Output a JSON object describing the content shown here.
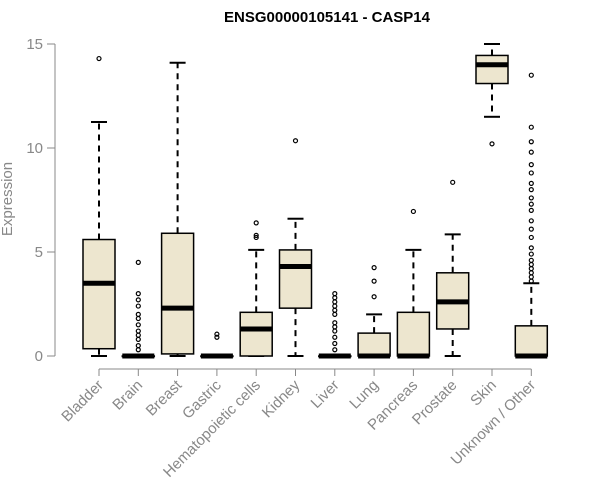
{
  "chart_data": {
    "type": "box",
    "title": "ENSG00000105141 - CASP14",
    "xlabel": "",
    "ylabel": "Expression",
    "ylim": [
      0,
      15
    ],
    "yticks": [
      0,
      5,
      10,
      15
    ],
    "grid": false,
    "colors": {
      "box_fill": "#ede6cf",
      "stroke": "#000000",
      "axis": "#888888"
    },
    "categories": [
      "Bladder",
      "Brain",
      "Breast",
      "Gastric",
      "Hematopoietic cells",
      "Kidney",
      "Liver",
      "Lung",
      "Pancreas",
      "Prostate",
      "Skin",
      "Unknown / Other"
    ],
    "boxes": [
      {
        "min": 0,
        "q1": 0.35,
        "median": 3.5,
        "q3": 5.6,
        "max": 11.25,
        "outliers": [
          14.3
        ]
      },
      {
        "min": 0,
        "q1": 0,
        "median": 0,
        "q3": 0,
        "max": 0,
        "outliers": [
          4.5,
          3.0,
          2.7,
          2.4,
          2.0,
          1.8,
          1.5,
          1.2,
          1.0,
          0.8,
          0.5,
          0.3
        ]
      },
      {
        "min": 0,
        "q1": 0.1,
        "median": 2.3,
        "q3": 5.9,
        "max": 14.1,
        "outliers": []
      },
      {
        "min": 0,
        "q1": 0,
        "median": 0,
        "q3": 0,
        "max": 0,
        "outliers": [
          1.05,
          0.9
        ]
      },
      {
        "min": 0,
        "q1": 0,
        "median": 1.3,
        "q3": 2.1,
        "max": 5.1,
        "outliers": [
          6.4,
          5.8,
          5.7
        ]
      },
      {
        "min": 0,
        "q1": 2.3,
        "median": 4.3,
        "q3": 5.1,
        "max": 6.6,
        "outliers": [
          10.35
        ]
      },
      {
        "min": 0,
        "q1": 0,
        "median": 0,
        "q3": 0,
        "max": 0,
        "outliers": [
          3.0,
          2.8,
          2.6,
          2.4,
          2.2,
          2.0,
          1.6,
          1.4,
          1.2,
          0.9,
          0.6,
          0.3
        ]
      },
      {
        "min": 0,
        "q1": 0,
        "median": 0,
        "q3": 1.1,
        "max": 2.0,
        "outliers": [
          4.25,
          3.6,
          2.85
        ]
      },
      {
        "min": 0,
        "q1": 0,
        "median": 0,
        "q3": 2.1,
        "max": 5.1,
        "outliers": [
          6.95
        ]
      },
      {
        "min": 0,
        "q1": 1.3,
        "median": 2.6,
        "q3": 4.0,
        "max": 5.85,
        "outliers": [
          8.35
        ]
      },
      {
        "min": 11.5,
        "q1": 13.1,
        "median": 14.0,
        "q3": 14.45,
        "max": 15.0,
        "outliers": [
          10.2
        ]
      },
      {
        "min": 0,
        "q1": 0,
        "median": 0,
        "q3": 1.45,
        "max": 3.5,
        "outliers": [
          13.5,
          11.0,
          10.3,
          9.8,
          9.2,
          8.8,
          8.3,
          8.0,
          7.6,
          7.3,
          7.0,
          6.5,
          6.1,
          5.7,
          5.2,
          4.9,
          4.6,
          4.4,
          4.2,
          4.0,
          3.8,
          3.6
        ]
      }
    ]
  }
}
